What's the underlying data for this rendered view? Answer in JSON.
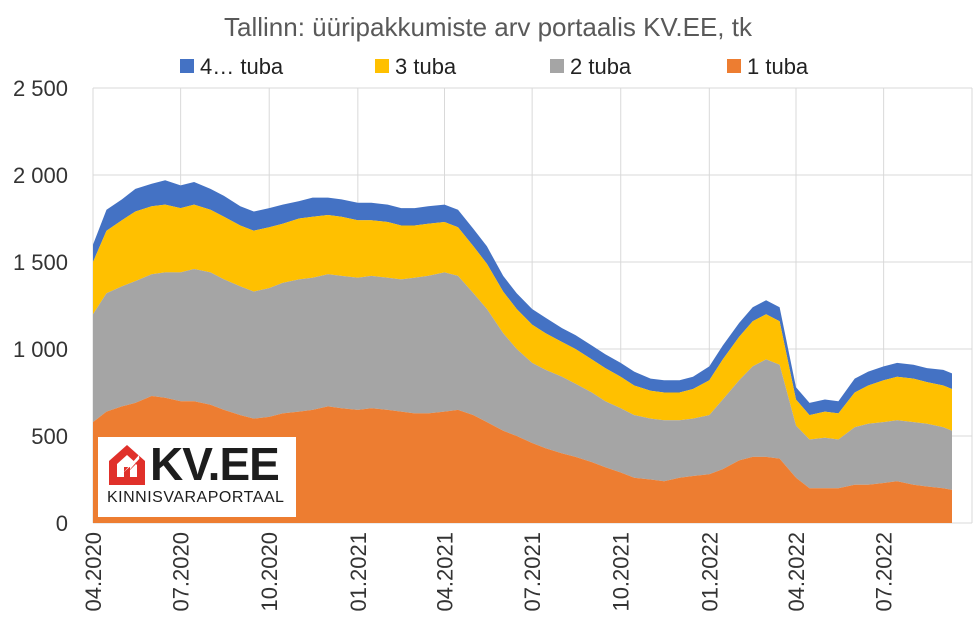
{
  "colors": {
    "one_room": "#ed7d31",
    "two_room": "#a5a5a5",
    "three_room": "#ffc000",
    "four_room": "#4472c4",
    "logo_red": "#e0302a"
  },
  "logo": {
    "brand": "KV.EE",
    "tagline": "KINNISVARAPORTAAL"
  },
  "chart_data": {
    "type": "area",
    "stacked": true,
    "title": "Tallinn: üüripakkumiste arv portaalis KV.EE, tk",
    "legend_position": "top",
    "grid": "horizontal",
    "ylim": [
      0,
      2500
    ],
    "yticks": [
      0,
      500,
      1000,
      1500,
      2000,
      2500
    ],
    "ytick_labels": [
      "0",
      "500",
      "1 000",
      "1 500",
      "2 000",
      "2 500"
    ],
    "x_start": "2020-04-01",
    "x_end": "2022-09-10",
    "xtick_labels": [
      "04.2020",
      "07.2020",
      "10.2020",
      "01.2021",
      "04.2021",
      "07.2021",
      "10.2021",
      "01.2022",
      "04.2022",
      "07.2022"
    ],
    "xtick_dates": [
      "2020-04-01",
      "2020-07-01",
      "2020-10-01",
      "2021-01-01",
      "2021-04-01",
      "2021-07-01",
      "2021-10-01",
      "2022-01-01",
      "2022-04-01",
      "2022-07-01"
    ],
    "x": [
      "2020-04-01",
      "2020-04-15",
      "2020-05-01",
      "2020-05-15",
      "2020-06-01",
      "2020-06-15",
      "2020-07-01",
      "2020-07-15",
      "2020-08-01",
      "2020-08-15",
      "2020-09-01",
      "2020-09-15",
      "2020-10-01",
      "2020-10-15",
      "2020-11-01",
      "2020-11-15",
      "2020-12-01",
      "2020-12-15",
      "2021-01-01",
      "2021-01-15",
      "2021-02-01",
      "2021-02-15",
      "2021-03-01",
      "2021-03-15",
      "2021-04-01",
      "2021-04-15",
      "2021-05-01",
      "2021-05-15",
      "2021-06-01",
      "2021-06-15",
      "2021-07-01",
      "2021-07-15",
      "2021-08-01",
      "2021-08-15",
      "2021-09-01",
      "2021-09-15",
      "2021-10-01",
      "2021-10-15",
      "2021-11-01",
      "2021-11-15",
      "2021-12-01",
      "2021-12-15",
      "2022-01-01",
      "2022-01-15",
      "2022-02-01",
      "2022-02-15",
      "2022-03-01",
      "2022-03-15",
      "2022-04-01",
      "2022-04-15",
      "2022-05-01",
      "2022-05-15",
      "2022-06-01",
      "2022-06-15",
      "2022-07-01",
      "2022-07-15",
      "2022-08-01",
      "2022-08-15",
      "2022-09-01",
      "2022-09-10"
    ],
    "series": [
      {
        "name": "4… tuba",
        "values": [
          100,
          120,
          120,
          130,
          130,
          140,
          130,
          130,
          120,
          120,
          110,
          110,
          110,
          110,
          100,
          110,
          100,
          100,
          100,
          100,
          100,
          100,
          100,
          100,
          100,
          100,
          100,
          100,
          90,
          90,
          90,
          90,
          80,
          80,
          80,
          80,
          80,
          80,
          70,
          70,
          70,
          70,
          80,
          80,
          80,
          80,
          80,
          80,
          70,
          70,
          70,
          70,
          80,
          80,
          80,
          80,
          80,
          80,
          90,
          90
        ]
      },
      {
        "name": "3 tuba",
        "values": [
          300,
          360,
          380,
          400,
          390,
          390,
          370,
          370,
          360,
          360,
          350,
          350,
          350,
          340,
          350,
          350,
          340,
          340,
          330,
          320,
          320,
          310,
          300,
          300,
          290,
          280,
          270,
          260,
          240,
          230,
          220,
          210,
          200,
          200,
          190,
          190,
          180,
          170,
          160,
          160,
          160,
          170,
          200,
          230,
          250,
          260,
          260,
          250,
          150,
          140,
          150,
          150,
          200,
          220,
          240,
          250,
          250,
          240,
          240,
          240
        ]
      },
      {
        "name": "2 tuba",
        "values": [
          620,
          680,
          690,
          700,
          700,
          720,
          740,
          760,
          760,
          750,
          740,
          730,
          740,
          750,
          760,
          760,
          760,
          760,
          760,
          760,
          760,
          760,
          780,
          790,
          800,
          770,
          700,
          650,
          560,
          500,
          460,
          450,
          440,
          420,
          400,
          380,
          370,
          360,
          350,
          350,
          330,
          330,
          340,
          400,
          460,
          520,
          560,
          540,
          300,
          280,
          290,
          280,
          330,
          350,
          350,
          350,
          360,
          360,
          350,
          340
        ]
      },
      {
        "name": "1 tuba",
        "values": [
          580,
          640,
          670,
          690,
          730,
          720,
          700,
          700,
          680,
          650,
          620,
          600,
          610,
          630,
          640,
          650,
          670,
          660,
          650,
          660,
          650,
          640,
          630,
          630,
          640,
          650,
          620,
          580,
          530,
          500,
          460,
          430,
          400,
          380,
          350,
          320,
          290,
          260,
          250,
          240,
          260,
          270,
          280,
          310,
          360,
          380,
          380,
          370,
          260,
          200,
          200,
          200,
          220,
          220,
          230,
          240,
          220,
          210,
          200,
          190
        ]
      }
    ]
  }
}
